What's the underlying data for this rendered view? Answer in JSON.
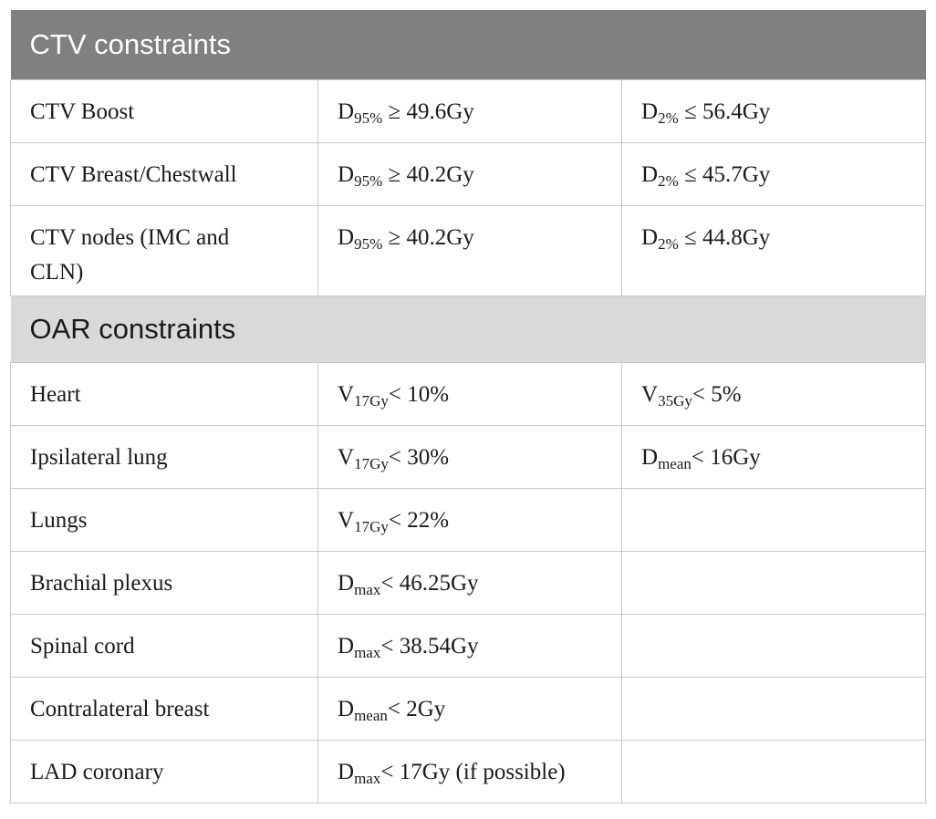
{
  "sections": [
    {
      "title": "CTV constraints",
      "rows": [
        {
          "structure": "CTV Boost",
          "c1": {
            "sym": "D",
            "sub": "95%",
            "rest": " ≥ 49.6Gy"
          },
          "c2": {
            "sym": "D",
            "sub": "2%",
            "rest": " ≤ 56.4Gy"
          }
        },
        {
          "structure": "CTV Breast/Chestwall",
          "c1": {
            "sym": "D",
            "sub": "95%",
            "rest": " ≥ 40.2Gy"
          },
          "c2": {
            "sym": "D",
            "sub": "2%",
            "rest": " ≤ 45.7Gy"
          }
        },
        {
          "structure": "CTV nodes (IMC and CLN)",
          "c1": {
            "sym": "D",
            "sub": "95%",
            "rest": " ≥ 40.2Gy"
          },
          "c2": {
            "sym": "D",
            "sub": "2%",
            "rest": " ≤ 44.8Gy"
          }
        }
      ]
    },
    {
      "title": "OAR constraints",
      "rows": [
        {
          "structure": "Heart",
          "c1": {
            "sym": "V",
            "sub": "17Gy",
            "rest": "< 10%"
          },
          "c2": {
            "sym": "V",
            "sub": "35Gy",
            "rest": "< 5%"
          }
        },
        {
          "structure": "Ipsilateral lung",
          "c1": {
            "sym": "V",
            "sub": "17Gy",
            "rest": "< 30%"
          },
          "c2": {
            "sym": "D",
            "sub": "mean",
            "rest": "< 16Gy"
          }
        },
        {
          "structure": "Lungs",
          "c1": {
            "sym": "V",
            "sub": "17Gy",
            "rest": "< 22%"
          },
          "c2": {
            "sym": "",
            "sub": "",
            "rest": ""
          }
        },
        {
          "structure": "Brachial plexus",
          "c1": {
            "sym": "D",
            "sub": "max",
            "rest": "< 46.25Gy"
          },
          "c2": {
            "sym": "",
            "sub": "",
            "rest": ""
          }
        },
        {
          "structure": "Spinal cord",
          "c1": {
            "sym": "D",
            "sub": "max",
            "rest": "< 38.54Gy"
          },
          "c2": {
            "sym": "",
            "sub": "",
            "rest": ""
          }
        },
        {
          "structure": "Contralateral breast",
          "c1": {
            "sym": "D",
            "sub": "mean",
            "rest": "< 2Gy"
          },
          "c2": {
            "sym": "",
            "sub": "",
            "rest": ""
          }
        },
        {
          "structure": "LAD coronary",
          "c1": {
            "sym": "D",
            "sub": "max",
            "rest": "< 17Gy (if possible)"
          },
          "c2": {
            "sym": "",
            "sub": "",
            "rest": ""
          }
        }
      ]
    }
  ]
}
